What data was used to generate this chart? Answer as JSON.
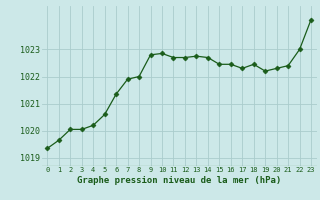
{
  "x": [
    0,
    1,
    2,
    3,
    4,
    5,
    6,
    7,
    8,
    9,
    10,
    11,
    12,
    13,
    14,
    15,
    16,
    17,
    18,
    19,
    20,
    21,
    22,
    23
  ],
  "y": [
    1019.35,
    1019.65,
    1020.05,
    1020.05,
    1020.2,
    1020.6,
    1021.35,
    1021.9,
    1022.0,
    1022.8,
    1022.85,
    1022.7,
    1022.7,
    1022.75,
    1022.7,
    1022.45,
    1022.45,
    1022.3,
    1022.45,
    1022.2,
    1022.3,
    1022.4,
    1023.0,
    1024.1
  ],
  "ylabel_ticks": [
    1019,
    1020,
    1021,
    1022,
    1023
  ],
  "xlabel_label": "Graphe pression niveau de la mer (hPa)",
  "background_color": "#cce8e8",
  "grid_color": "#aacccc",
  "line_color": "#1a5c1a",
  "marker_color": "#1a5c1a",
  "xlabel_color": "#1a5c1a",
  "ylim": [
    1018.7,
    1024.6
  ],
  "xlim": [
    -0.5,
    23.5
  ]
}
